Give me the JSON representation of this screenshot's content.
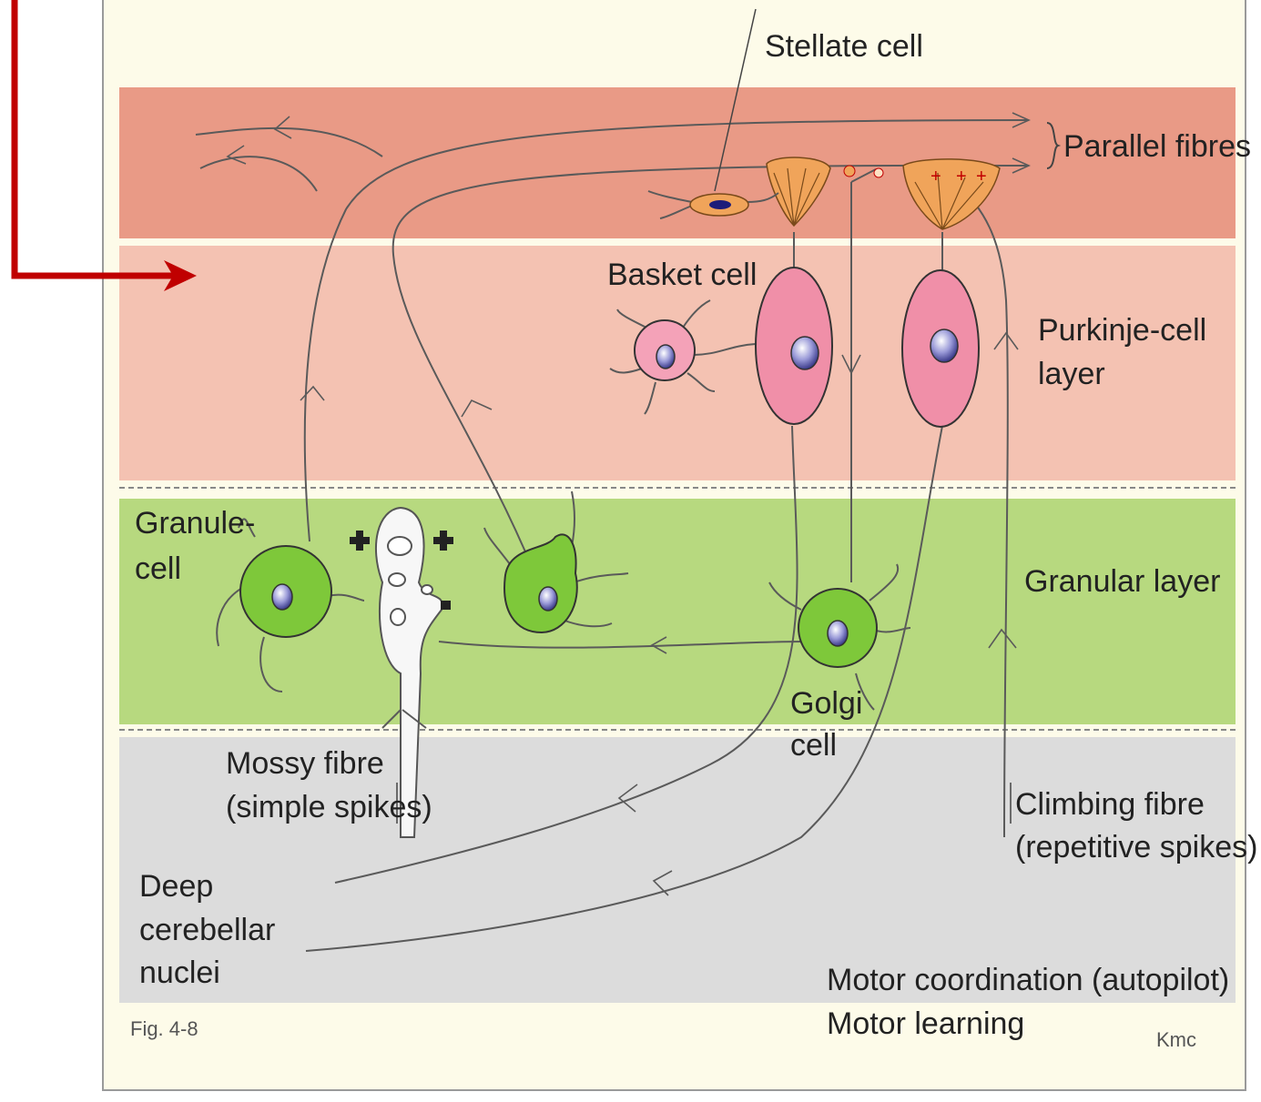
{
  "labels": {
    "stellate": "Stellate cell",
    "parallel": "Parallel fibres",
    "basket": "Basket cell",
    "purkinje_1": "Purkinje-cell",
    "purkinje_2": "layer",
    "granule_1": "Granule-",
    "granule_2": "cell",
    "granular": "Granular layer",
    "golgi_1": "Golgi",
    "golgi_2": "cell",
    "mossy_1": "Mossy fibre",
    "mossy_2": "(simple spikes)",
    "climbing_1": "Climbing fibre",
    "climbing_2": "(repetitive spikes)",
    "deep_1": "Deep",
    "deep_2": "cerebellar",
    "deep_3": "nuclei",
    "motor_1": "Motor coordination (autopilot)",
    "motor_2": "Motor learning",
    "fig": "Fig. 4-8",
    "credit": "Kmc"
  },
  "colors": {
    "background": "#fdfbe9",
    "molecular_layer": "#e99a86",
    "purkinje_layer": "#f4c2b2",
    "granular_layer": "#b7d97f",
    "white_matter": "#dcdcdc",
    "pointer_arrow": "#c00000",
    "purkinje_cell": "#f08fa8",
    "granule_cell": "#7ec83a",
    "stellate_basket_axon": "#f0a45a"
  },
  "icons": [
    "pointer-arrow",
    "plus-sign",
    "minus-sign",
    "arrowhead"
  ]
}
